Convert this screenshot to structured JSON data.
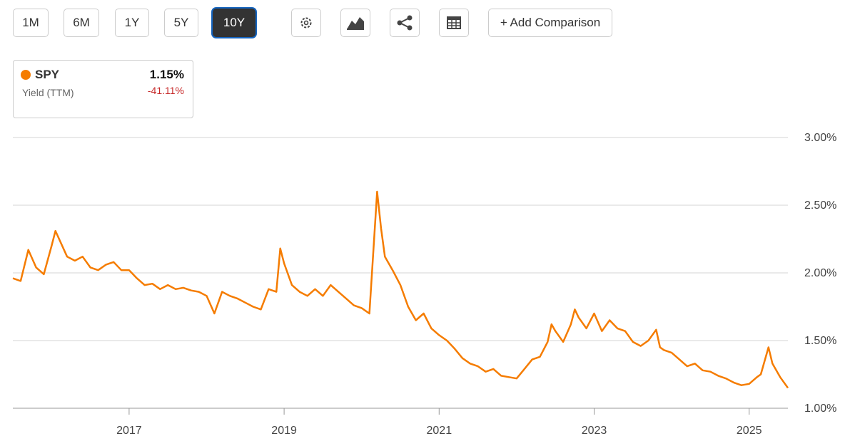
{
  "toolbar": {
    "ranges": [
      "1M",
      "6M",
      "1Y",
      "5Y",
      "10Y"
    ],
    "add_comparison": "+ Add Comparison"
  },
  "legend": {
    "value": "1.15%",
    "metric": "Yield (TTM)",
    "change": "-41.11%"
  },
  "chart_data": {
    "type": "line",
    "x": [
      2015.5,
      2015.6,
      2015.7,
      2015.8,
      2015.9,
      2016.0,
      2016.05,
      2016.2,
      2016.3,
      2016.4,
      2016.5,
      2016.6,
      2016.7,
      2016.8,
      2016.9,
      2017.0,
      2017.1,
      2017.2,
      2017.3,
      2017.4,
      2017.5,
      2017.6,
      2017.7,
      2017.8,
      2017.9,
      2018.0,
      2018.1,
      2018.2,
      2018.3,
      2018.4,
      2018.5,
      2018.6,
      2018.7,
      2018.8,
      2018.9,
      2018.95,
      2019.0,
      2019.1,
      2019.2,
      2019.3,
      2019.4,
      2019.5,
      2019.6,
      2019.7,
      2019.8,
      2019.9,
      2020.0,
      2020.1,
      2020.2,
      2020.25,
      2020.3,
      2020.4,
      2020.5,
      2020.6,
      2020.7,
      2020.8,
      2020.9,
      2021.0,
      2021.1,
      2021.2,
      2021.3,
      2021.4,
      2021.5,
      2021.6,
      2021.7,
      2021.8,
      2021.9,
      2022.0,
      2022.1,
      2022.2,
      2022.3,
      2022.4,
      2022.45,
      2022.5,
      2022.6,
      2022.7,
      2022.75,
      2022.8,
      2022.9,
      2023.0,
      2023.1,
      2023.2,
      2023.3,
      2023.4,
      2023.5,
      2023.6,
      2023.7,
      2023.8,
      2023.85,
      2023.9,
      2024.0,
      2024.1,
      2024.2,
      2024.3,
      2024.4,
      2024.5,
      2024.6,
      2024.7,
      2024.8,
      2024.9,
      2025.0,
      2025.1,
      2025.15,
      2025.25,
      2025.3,
      2025.4,
      2025.5
    ],
    "series": [
      {
        "name": "SPY",
        "color": "#f57c00",
        "values": [
          1.96,
          1.94,
          2.17,
          2.04,
          1.99,
          2.2,
          2.31,
          2.12,
          2.09,
          2.12,
          2.04,
          2.02,
          2.06,
          2.08,
          2.02,
          2.02,
          1.96,
          1.91,
          1.92,
          1.88,
          1.91,
          1.88,
          1.89,
          1.87,
          1.86,
          1.83,
          1.7,
          1.86,
          1.83,
          1.81,
          1.78,
          1.75,
          1.73,
          1.88,
          1.86,
          2.18,
          2.07,
          1.91,
          1.86,
          1.83,
          1.88,
          1.83,
          1.91,
          1.86,
          1.81,
          1.76,
          1.74,
          1.7,
          2.6,
          2.33,
          2.12,
          2.02,
          1.91,
          1.75,
          1.65,
          1.7,
          1.59,
          1.54,
          1.5,
          1.44,
          1.37,
          1.33,
          1.31,
          1.27,
          1.29,
          1.24,
          1.23,
          1.22,
          1.29,
          1.36,
          1.38,
          1.49,
          1.62,
          1.57,
          1.49,
          1.62,
          1.73,
          1.67,
          1.59,
          1.7,
          1.57,
          1.65,
          1.59,
          1.57,
          1.49,
          1.46,
          1.5,
          1.58,
          1.45,
          1.43,
          1.41,
          1.36,
          1.31,
          1.33,
          1.28,
          1.27,
          1.24,
          1.22,
          1.19,
          1.17,
          1.18,
          1.23,
          1.25,
          1.45,
          1.33,
          1.23,
          1.15
        ]
      }
    ],
    "xlim": [
      2015.5,
      2025.5
    ],
    "xticks": [
      2017,
      2019,
      2021,
      2023,
      2025
    ],
    "ylim": [
      1,
      3
    ],
    "yticks": [
      {
        "value": 1,
        "label": "1.00%"
      },
      {
        "value": 1.5,
        "label": "1.50%"
      },
      {
        "value": 2,
        "label": "2.00%"
      },
      {
        "value": 2.5,
        "label": "2.50%"
      },
      {
        "value": 3,
        "label": "3.00%"
      }
    ],
    "grid": true
  }
}
